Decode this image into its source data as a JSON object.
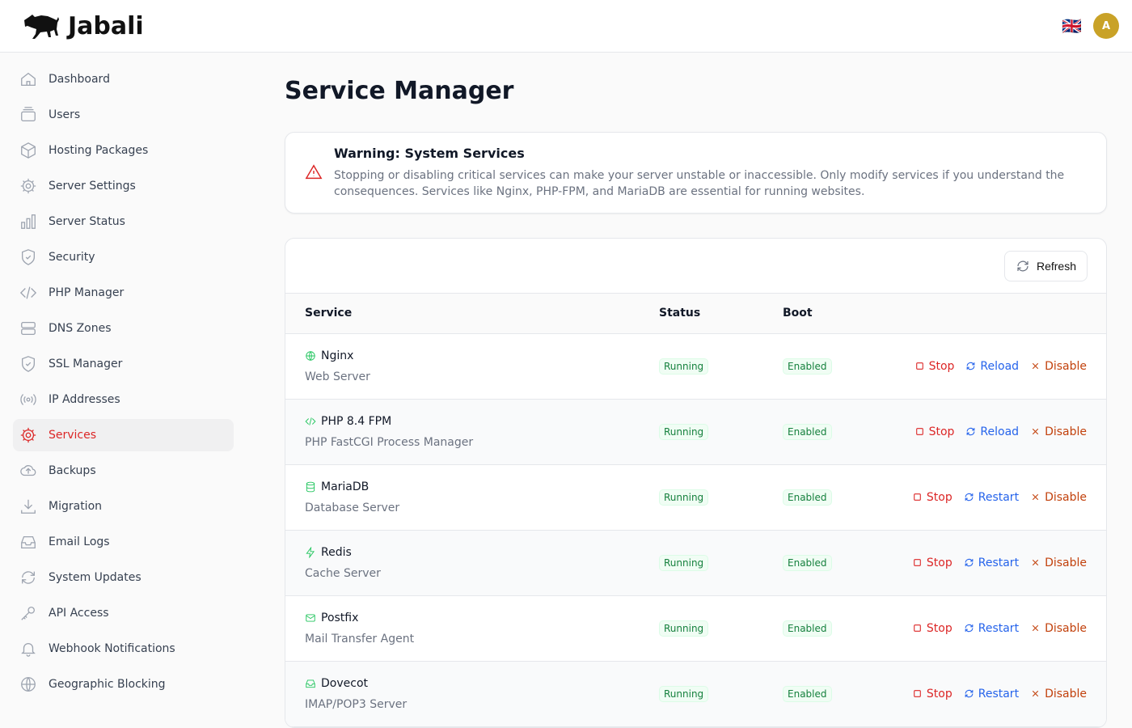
{
  "header": {
    "brand": "Jabali",
    "language_flag": "🇬🇧",
    "avatar_initial": "A"
  },
  "sidebar": {
    "items": [
      {
        "label": "Dashboard",
        "icon": "home-icon"
      },
      {
        "label": "Users",
        "icon": "users-icon"
      },
      {
        "label": "Hosting Packages",
        "icon": "cube-icon"
      },
      {
        "label": "Server Settings",
        "icon": "gear-icon"
      },
      {
        "label": "Server Status",
        "icon": "chart-bar-icon"
      },
      {
        "label": "Security",
        "icon": "shield-check-icon"
      },
      {
        "label": "PHP Manager",
        "icon": "code-icon"
      },
      {
        "label": "DNS Zones",
        "icon": "server-stack-icon"
      },
      {
        "label": "SSL Manager",
        "icon": "shield-check-icon"
      },
      {
        "label": "IP Addresses",
        "icon": "signal-icon"
      },
      {
        "label": "Services",
        "icon": "gear-icon",
        "active": true
      },
      {
        "label": "Backups",
        "icon": "cloud-upload-icon"
      },
      {
        "label": "Migration",
        "icon": "download-icon"
      },
      {
        "label": "Email Logs",
        "icon": "inbox-icon"
      },
      {
        "label": "System Updates",
        "icon": "refresh-icon"
      },
      {
        "label": "API Access",
        "icon": "key-icon"
      },
      {
        "label": "Webhook Notifications",
        "icon": "bell-icon"
      },
      {
        "label": "Geographic Blocking",
        "icon": "globe-icon"
      }
    ]
  },
  "page": {
    "title": "Service Manager"
  },
  "warning": {
    "title": "Warning: System Services",
    "text": "Stopping or disabling critical services can make your server unstable or inaccessible. Only modify services if you understand the consequences. Services like Nginx, PHP-FPM, and MariaDB are essential for running websites."
  },
  "table": {
    "refresh_label": "Refresh",
    "columns": [
      "Service",
      "Status",
      "Boot"
    ],
    "rows": [
      {
        "name": "Nginx",
        "desc": "Web Server",
        "icon": "globe-icon",
        "status": "Running",
        "boot": "Enabled",
        "actions": [
          "Stop",
          "Reload",
          "Disable"
        ]
      },
      {
        "name": "PHP 8.4 FPM",
        "desc": "PHP FastCGI Process Manager",
        "icon": "code-icon",
        "status": "Running",
        "boot": "Enabled",
        "actions": [
          "Stop",
          "Reload",
          "Disable"
        ]
      },
      {
        "name": "MariaDB",
        "desc": "Database Server",
        "icon": "database-icon",
        "status": "Running",
        "boot": "Enabled",
        "actions": [
          "Stop",
          "Restart",
          "Disable"
        ]
      },
      {
        "name": "Redis",
        "desc": "Cache Server",
        "icon": "bolt-icon",
        "status": "Running",
        "boot": "Enabled",
        "actions": [
          "Stop",
          "Restart",
          "Disable"
        ]
      },
      {
        "name": "Postfix",
        "desc": "Mail Transfer Agent",
        "icon": "envelope-icon",
        "status": "Running",
        "boot": "Enabled",
        "actions": [
          "Stop",
          "Restart",
          "Disable"
        ]
      },
      {
        "name": "Dovecot",
        "desc": "IMAP/POP3 Server",
        "icon": "inbox-icon",
        "status": "Running",
        "boot": "Enabled",
        "actions": [
          "Stop",
          "Restart",
          "Disable"
        ]
      }
    ]
  }
}
